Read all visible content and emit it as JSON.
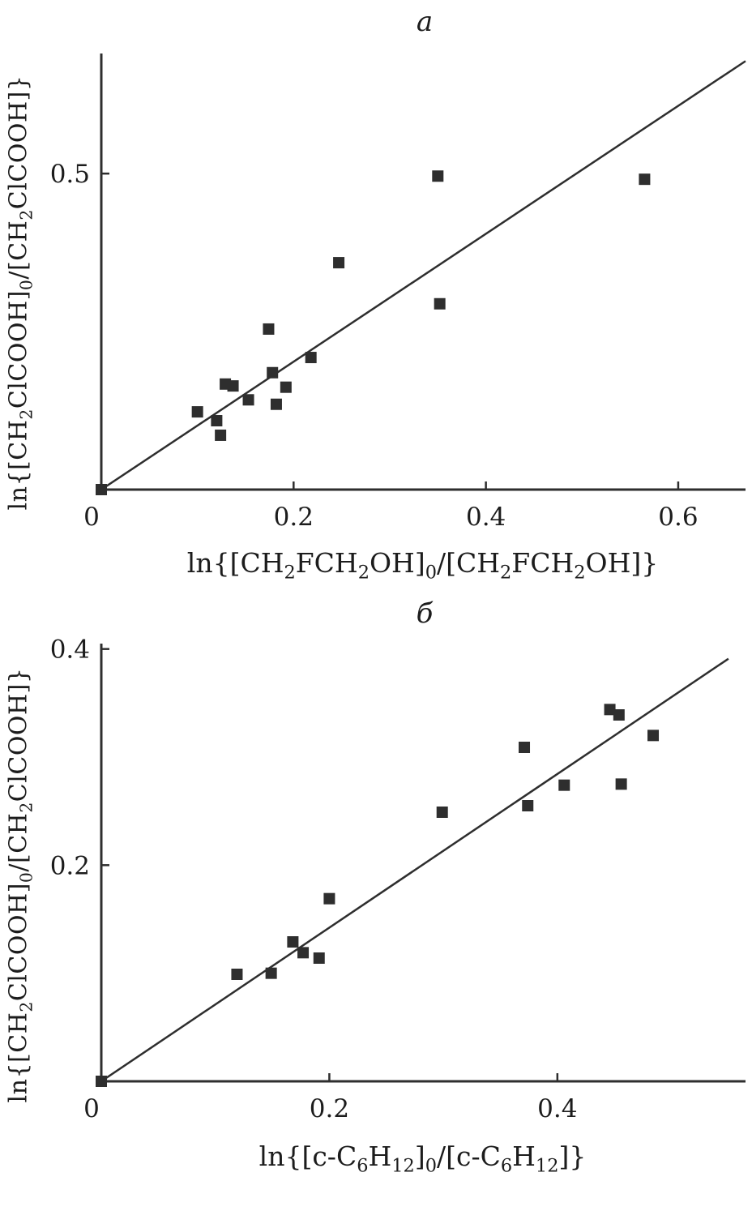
{
  "figure": {
    "background": "#ffffff",
    "ink_color": "#2e2e2e"
  },
  "chart_data": [
    {
      "type": "scatter",
      "panel_label": "a",
      "title": "a",
      "xlabel": "ln{[CH₂FCH₂OH]₀/[CH₂FCH₂OH]}",
      "ylabel": "ln{[CH₂ClCOOH]₀/[CH₂ClCOOH]}",
      "xlim": [
        0,
        0.67
      ],
      "ylim": [
        0,
        0.69
      ],
      "grid": false,
      "legend": "none",
      "color": "#2e2e2e",
      "xticks": [
        {
          "v": 0,
          "label": "0"
        },
        {
          "v": 0.2,
          "label": "0.2"
        },
        {
          "v": 0.4,
          "label": "0.4"
        },
        {
          "v": 0.6,
          "label": "0.6"
        }
      ],
      "yticks": [
        {
          "v": 0.5,
          "label": "0.5"
        }
      ],
      "points": [
        [
          0,
          0
        ],
        [
          0.1,
          0.123
        ],
        [
          0.12,
          0.109
        ],
        [
          0.124,
          0.086
        ],
        [
          0.129,
          0.167
        ],
        [
          0.137,
          0.164
        ],
        [
          0.153,
          0.142
        ],
        [
          0.174,
          0.254
        ],
        [
          0.178,
          0.185
        ],
        [
          0.182,
          0.135
        ],
        [
          0.192,
          0.162
        ],
        [
          0.218,
          0.209
        ],
        [
          0.247,
          0.359
        ],
        [
          0.35,
          0.496
        ],
        [
          0.352,
          0.294
        ],
        [
          0.565,
          0.491
        ]
      ],
      "fit_line": {
        "x1": 0,
        "y1": 0,
        "x2": 0.67,
        "y2": 0.678
      }
    },
    {
      "type": "scatter",
      "panel_label": "б",
      "title": "б",
      "xlabel": "ln{[c-C₆H₁₂]₀/[c-C₆H₁₂]}",
      "ylabel": "ln{[CH₂ClCOOH]₀/[CH₂ClCOOH]}",
      "xlim": [
        0,
        0.565
      ],
      "ylim": [
        0,
        0.405
      ],
      "grid": false,
      "legend": "none",
      "color": "#2e2e2e",
      "xticks": [
        {
          "v": 0,
          "label": "0"
        },
        {
          "v": 0.2,
          "label": "0.2"
        },
        {
          "v": 0.4,
          "label": "0.4"
        }
      ],
      "yticks": [
        {
          "v": 0.2,
          "label": "0.2"
        },
        {
          "v": 0.4,
          "label": "0.4"
        }
      ],
      "points": [
        [
          0,
          0
        ],
        [
          0.119,
          0.099
        ],
        [
          0.149,
          0.1
        ],
        [
          0.168,
          0.129
        ],
        [
          0.177,
          0.119
        ],
        [
          0.191,
          0.114
        ],
        [
          0.2,
          0.169
        ],
        [
          0.299,
          0.249
        ],
        [
          0.371,
          0.309
        ],
        [
          0.374,
          0.255
        ],
        [
          0.406,
          0.274
        ],
        [
          0.446,
          0.344
        ],
        [
          0.454,
          0.339
        ],
        [
          0.456,
          0.275
        ],
        [
          0.484,
          0.32
        ]
      ],
      "fit_line": {
        "x1": 0,
        "y1": 0,
        "x2": 0.55,
        "y2": 0.391
      }
    }
  ]
}
